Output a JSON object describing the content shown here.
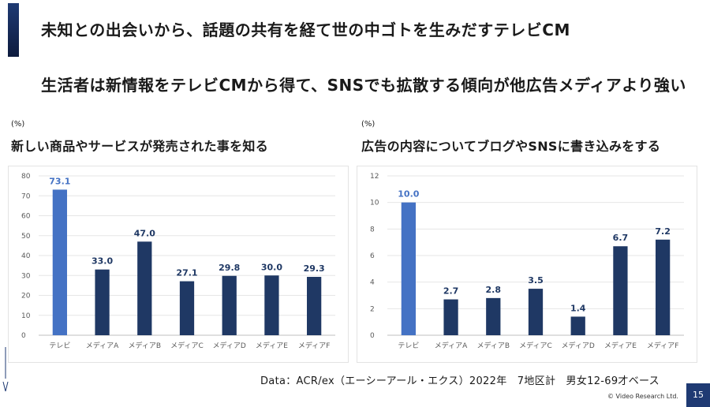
{
  "slide": {
    "title": "未知との出会いから、話題の共有を経て世の中ゴトを生みだすテレビCM",
    "subtitle": "生活者は新情報をテレビCMから得て、SNSでも拡散する傾向が他広告メディアより強い",
    "source": "Data：ACR/ex（エーシーアール・エクス）2022年　7地区計　男女12-69才ベース",
    "copyright": "© Video Research Ltd.",
    "page_number": "15"
  },
  "colors": {
    "highlight": "#4472c4",
    "bar": "#1f3864",
    "accent": "#1f3a73"
  },
  "chart_data": [
    {
      "type": "bar",
      "unit": "(%)",
      "title": "新しい商品やサービスが発売された事を知る",
      "categories": [
        "テレビ",
        "メディアA",
        "メディアB",
        "メディアC",
        "メディアD",
        "メディアE",
        "メディアF"
      ],
      "values": [
        73.1,
        33.0,
        47.0,
        27.1,
        29.8,
        30.0,
        29.3
      ],
      "value_labels": [
        "73.1",
        "33.0",
        "47.0",
        "27.1",
        "29.8",
        "30.0",
        "29.3"
      ],
      "ylim": [
        0,
        80
      ],
      "yticks": [
        "0",
        "10",
        "20",
        "30",
        "40",
        "50",
        "60",
        "70",
        "80"
      ],
      "grid": true
    },
    {
      "type": "bar",
      "unit": "(%)",
      "title": "広告の内容についてブログやSNSに書き込みをする",
      "categories": [
        "テレビ",
        "メディアA",
        "メディアB",
        "メディアC",
        "メディアD",
        "メディアE",
        "メディアF"
      ],
      "values": [
        10.0,
        2.7,
        2.8,
        3.5,
        1.4,
        6.7,
        7.2
      ],
      "value_labels": [
        "10.0",
        "2.7",
        "2.8",
        "3.5",
        "1.4",
        "6.7",
        "7.2"
      ],
      "ylim": [
        0,
        12
      ],
      "yticks": [
        "0",
        "2",
        "4",
        "6",
        "8",
        "10",
        "12"
      ],
      "grid": true
    }
  ]
}
